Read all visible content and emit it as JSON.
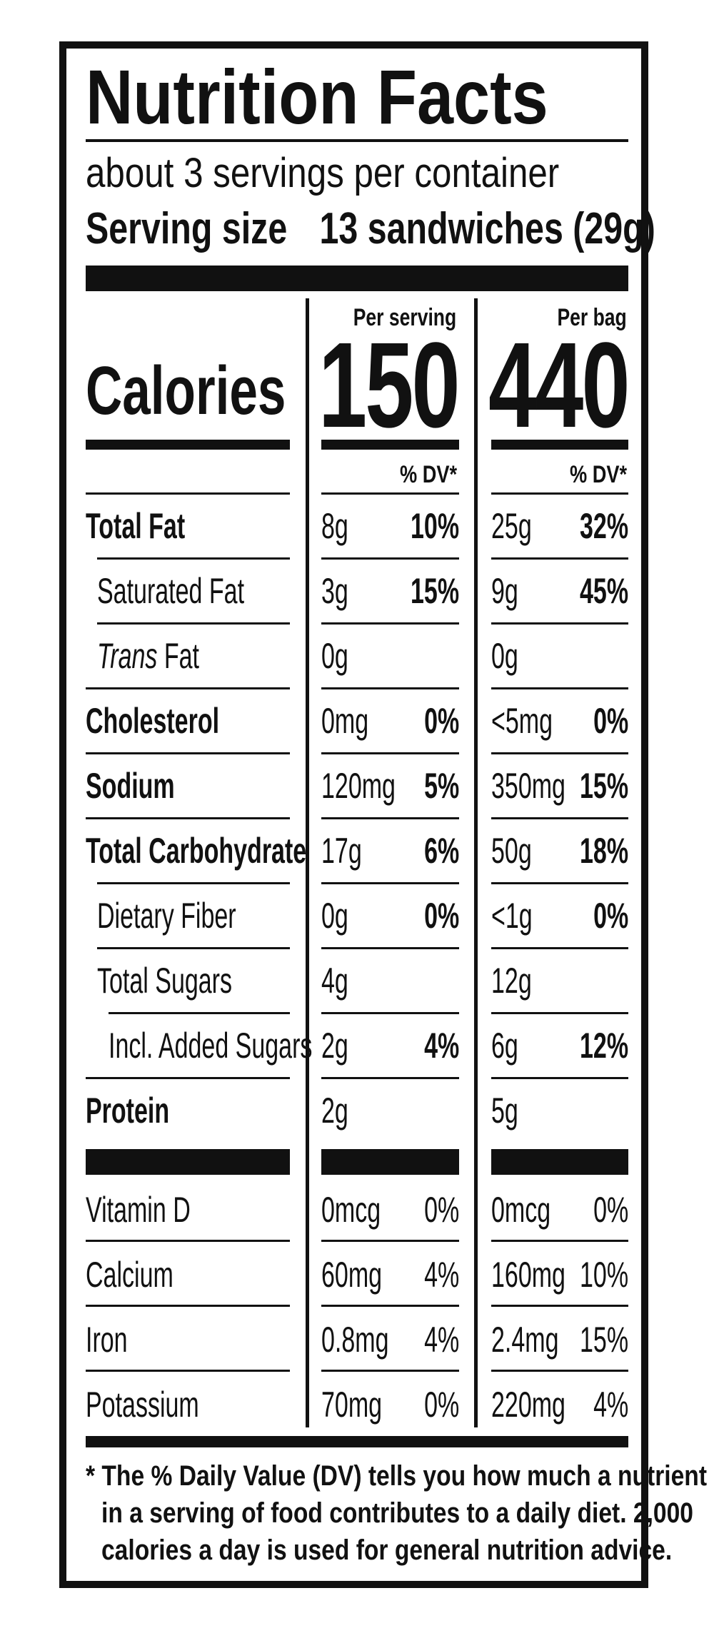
{
  "title": "Nutrition Facts",
  "servings_per_container": "about 3 servings per container",
  "serving_size_label": "Serving size",
  "serving_size_value": "13 sandwiches (29g)",
  "calories_label": "Calories",
  "columns": [
    {
      "heading": "Per serving",
      "calories": "150",
      "dv_heading": "% DV*"
    },
    {
      "heading": "Per bag",
      "calories": "440",
      "dv_heading": "% DV*"
    }
  ],
  "nutrients": [
    {
      "label": "Total Fat",
      "bold": true,
      "indent": 0,
      "serving_amount": "8g",
      "serving_dv": "10%",
      "bag_amount": "25g",
      "bag_dv": "32%"
    },
    {
      "label": "Saturated Fat",
      "bold": false,
      "indent": 1,
      "serving_amount": "3g",
      "serving_dv": "15%",
      "bag_amount": "9g",
      "bag_dv": "45%"
    },
    {
      "label_italic": "Trans",
      "label": " Fat",
      "bold": false,
      "indent": 1,
      "serving_amount": "0g",
      "serving_dv": "",
      "bag_amount": "0g",
      "bag_dv": ""
    },
    {
      "label": "Cholesterol",
      "bold": true,
      "indent": 0,
      "serving_amount": "0mg",
      "serving_dv": "0%",
      "bag_amount": "<5mg",
      "bag_dv": "0%"
    },
    {
      "label": "Sodium",
      "bold": true,
      "indent": 0,
      "serving_amount": "120mg",
      "serving_dv": "5%",
      "bag_amount": "350mg",
      "bag_dv": "15%"
    },
    {
      "label": "Total Carbohydrate",
      "bold": true,
      "indent": 0,
      "serving_amount": "17g",
      "serving_dv": "6%",
      "bag_amount": "50g",
      "bag_dv": "18%"
    },
    {
      "label": "Dietary Fiber",
      "bold": false,
      "indent": 1,
      "serving_amount": "0g",
      "serving_dv": "0%",
      "bag_amount": "<1g",
      "bag_dv": "0%"
    },
    {
      "label": "Total Sugars",
      "bold": false,
      "indent": 1,
      "serving_amount": "4g",
      "serving_dv": "",
      "bag_amount": "12g",
      "bag_dv": ""
    },
    {
      "label": "Incl. Added Sugars",
      "bold": false,
      "indent": 2,
      "serving_amount": "2g",
      "serving_dv": "4%",
      "bag_amount": "6g",
      "bag_dv": "12%"
    },
    {
      "label": "Protein",
      "bold": true,
      "indent": 0,
      "serving_amount": "2g",
      "serving_dv": "",
      "bag_amount": "5g",
      "bag_dv": ""
    }
  ],
  "vitamins": [
    {
      "label": "Vitamin D",
      "serving_amount": "0mcg",
      "serving_dv": "0%",
      "bag_amount": "0mcg",
      "bag_dv": "0%"
    },
    {
      "label": "Calcium",
      "serving_amount": "60mg",
      "serving_dv": "4%",
      "bag_amount": "160mg",
      "bag_dv": "10%"
    },
    {
      "label": "Iron",
      "serving_amount": "0.8mg",
      "serving_dv": "4%",
      "bag_amount": "2.4mg",
      "bag_dv": "15%"
    },
    {
      "label": "Potassium",
      "serving_amount": "70mg",
      "serving_dv": "0%",
      "bag_amount": "220mg",
      "bag_dv": "4%"
    }
  ],
  "footnote": [
    "* The % Daily Value (DV) tells you how much a nutrient",
    "in a serving of food contributes to a daily diet. 2,000",
    "calories a day is used for general nutrition advice."
  ],
  "colors": {
    "ink": "#111111",
    "background": "#ffffff"
  }
}
